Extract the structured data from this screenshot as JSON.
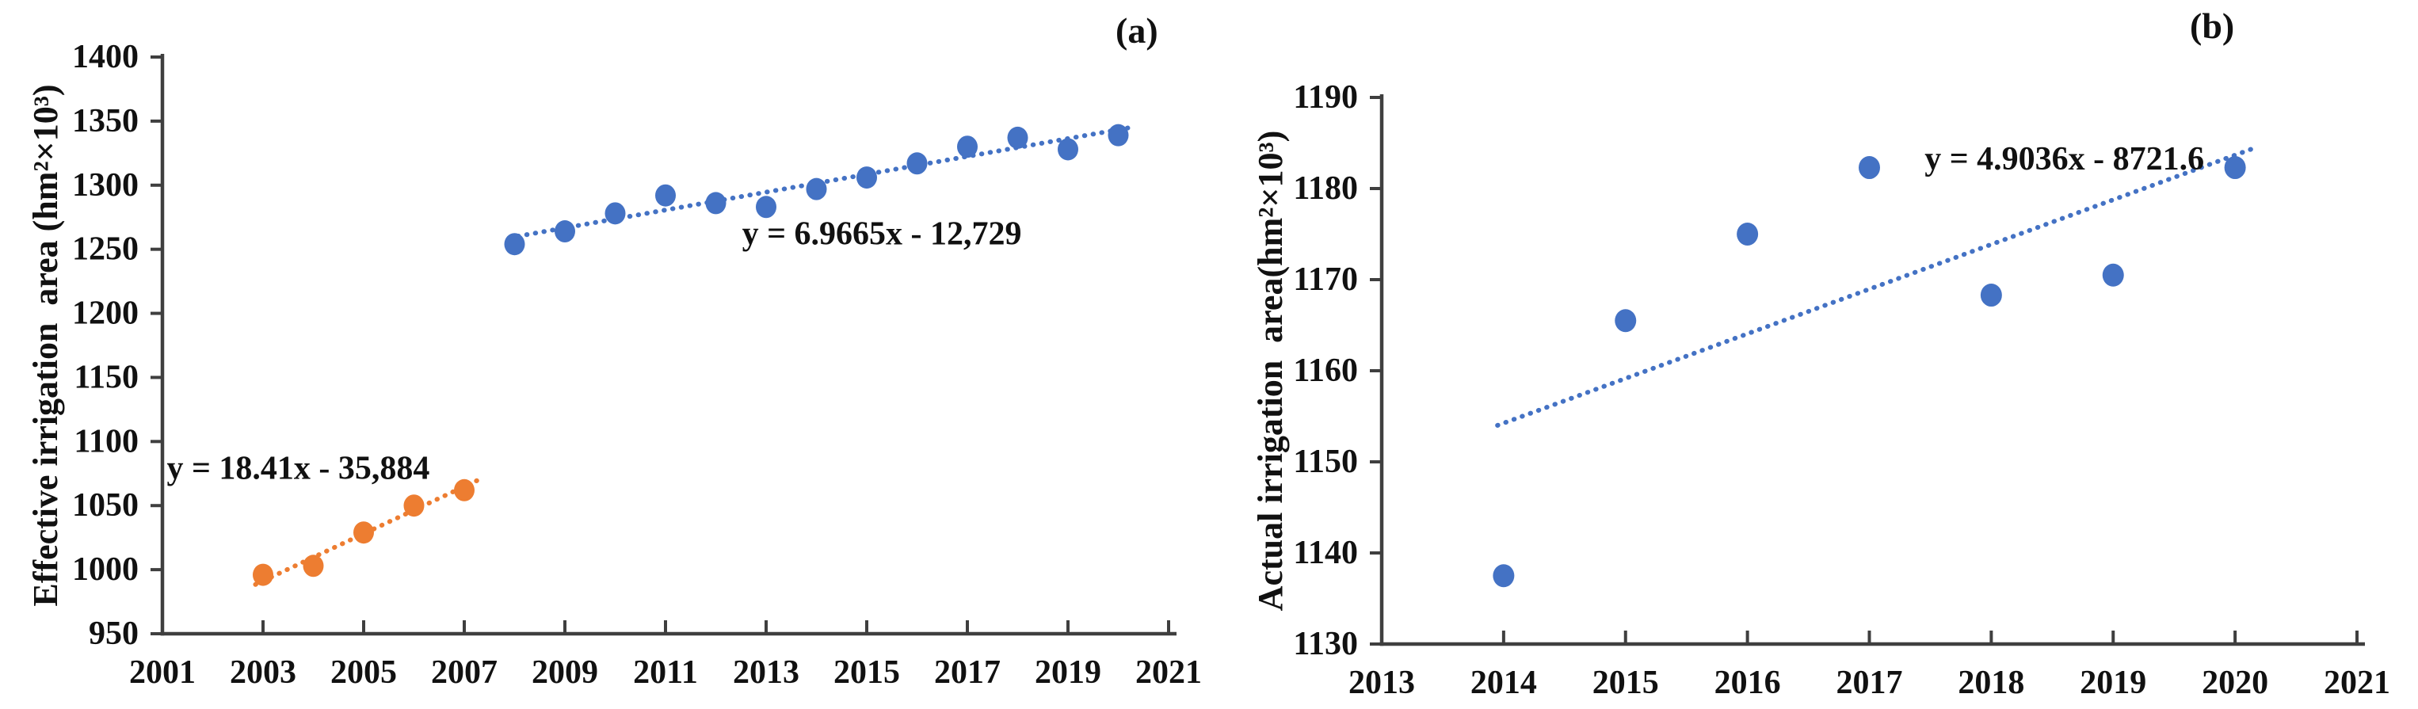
{
  "figure": {
    "panel_labels": {
      "a": "(a)",
      "b": "(b)"
    },
    "background": "#ffffff",
    "colors": {
      "blue": "#4472C4",
      "orange": "#ED7D31",
      "axis": "#3f3f3f",
      "text": "#111111"
    }
  },
  "chart_data": [
    {
      "id": "a",
      "type": "scatter",
      "panel_label": "(a)",
      "title": "",
      "xlabel": "",
      "ylabel": "Effective irrigation  area (hm²×10³)",
      "xlim": [
        2001,
        2021
      ],
      "ylim": [
        950,
        1400
      ],
      "xticks": [
        2001,
        2003,
        2005,
        2007,
        2009,
        2011,
        2013,
        2015,
        2017,
        2019,
        2021
      ],
      "yticks": [
        950,
        1000,
        1050,
        1100,
        1150,
        1200,
        1250,
        1300,
        1350,
        1400
      ],
      "grid": false,
      "legend": "none",
      "series": [
        {
          "name": "effective-irrigation-2003-2007",
          "color": "#ED7D31",
          "x": [
            2003,
            2004,
            2005,
            2006,
            2007
          ],
          "y": [
            996,
            1003,
            1029,
            1050,
            1062
          ],
          "trend": {
            "equation": "y = 18.41x - 35,884",
            "slope": 18.41,
            "intercept": -35884,
            "x_start": 2002.85,
            "x_end": 2007.3,
            "label_x": 2003.7,
            "label_y": 1079
          }
        },
        {
          "name": "effective-irrigation-2008-2020",
          "color": "#4472C4",
          "x": [
            2008,
            2009,
            2010,
            2011,
            2012,
            2013,
            2014,
            2015,
            2016,
            2017,
            2018,
            2019,
            2020
          ],
          "y": [
            1254,
            1264,
            1278,
            1292,
            1286,
            1283,
            1297,
            1306,
            1317,
            1330,
            1337,
            1328,
            1339
          ],
          "trend": {
            "equation": "y = 6.9665x - 12,729",
            "slope": 6.9665,
            "intercept": -12729,
            "x_start": 2007.9,
            "x_end": 2020.3,
            "label_x": 2015.3,
            "label_y": 1262
          }
        }
      ]
    },
    {
      "id": "b",
      "type": "scatter",
      "panel_label": "(b)",
      "title": "",
      "xlabel": "",
      "ylabel": "Actual irrigation  area(hm²×10³)",
      "xlim": [
        2013,
        2021
      ],
      "ylim": [
        1130,
        1190
      ],
      "xticks": [
        2013,
        2014,
        2015,
        2016,
        2017,
        2018,
        2019,
        2020,
        2021
      ],
      "yticks": [
        1130,
        1140,
        1150,
        1160,
        1170,
        1180,
        1190
      ],
      "grid": false,
      "legend": "none",
      "series": [
        {
          "name": "actual-irrigation-2014-2020",
          "color": "#4472C4",
          "x": [
            2014,
            2015,
            2016,
            2017,
            2018,
            2019,
            2020
          ],
          "y": [
            1137.5,
            1165.5,
            1175,
            1182.3,
            1168.3,
            1170.5,
            1182.3
          ],
          "trend": {
            "equation": "y = 4.9036x - 8721.6",
            "slope": 4.9036,
            "intercept": -8721.6,
            "x_start": 2013.95,
            "x_end": 2020.15,
            "label_x": 2018.6,
            "label_y": 1183.2
          }
        }
      ]
    }
  ]
}
